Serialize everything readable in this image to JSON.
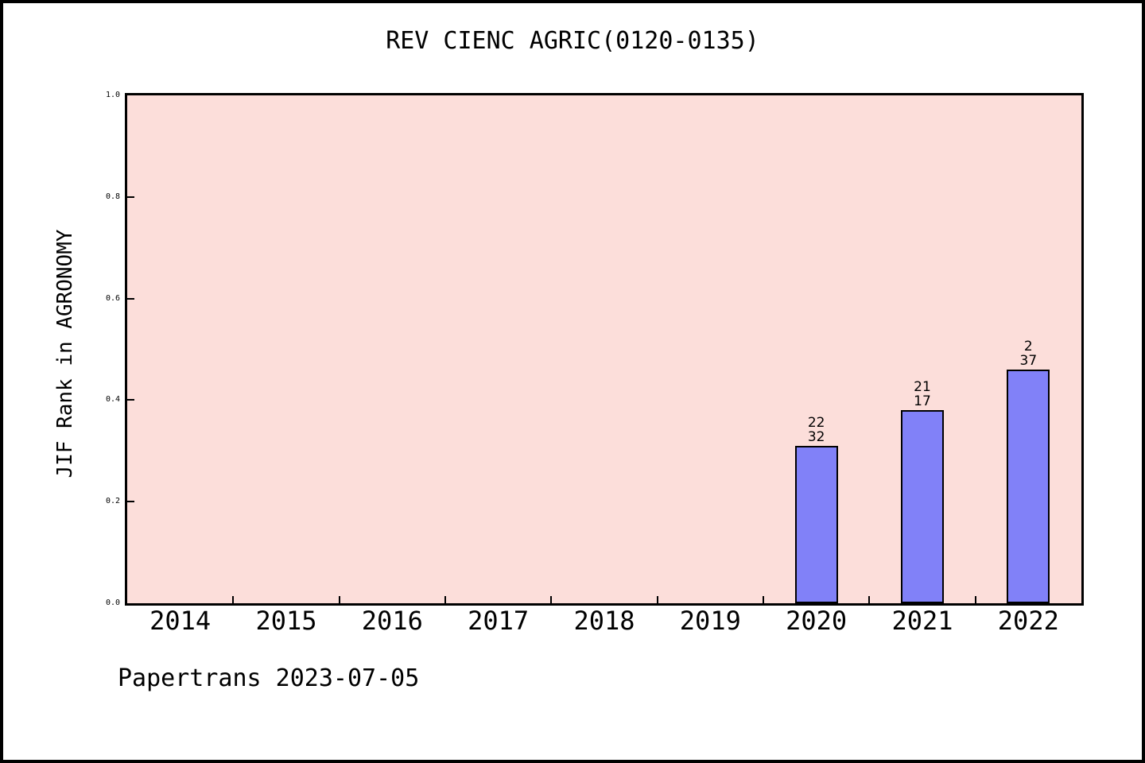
{
  "header": {
    "title": "REV CIENC AGRIC(0120-0135)"
  },
  "footer": {
    "text": "Papertrans 2023-07-05"
  },
  "colors": {
    "frame_border": "#000000",
    "figure_background": "#ffffff",
    "plot_background": "#fcdeda",
    "bar_fill": "#8181f8",
    "bar_edge": "#000000",
    "text": "#000000"
  },
  "chart_data": {
    "type": "bar",
    "title": "REV CIENC AGRIC(0120-0135)",
    "xlabel": "",
    "ylabel": "JIF Rank in AGRONOMY",
    "categories": [
      "2014",
      "2015",
      "2016",
      "2017",
      "2018",
      "2019",
      "2020",
      "2021",
      "2022"
    ],
    "yticks": [
      "0.0",
      "0.2",
      "0.4",
      "0.6",
      "0.8",
      "1.0"
    ],
    "ylim": [
      0.0,
      1.0
    ],
    "grid": false,
    "legend_position": "none",
    "bars": [
      {
        "category": "2020",
        "value": 0.31,
        "label_lines": [
          "22",
          "32"
        ]
      },
      {
        "category": "2021",
        "value": 0.38,
        "label_lines": [
          "21",
          "17"
        ]
      },
      {
        "category": "2022",
        "value": 0.46,
        "label_lines": [
          "2",
          "37"
        ]
      }
    ]
  }
}
